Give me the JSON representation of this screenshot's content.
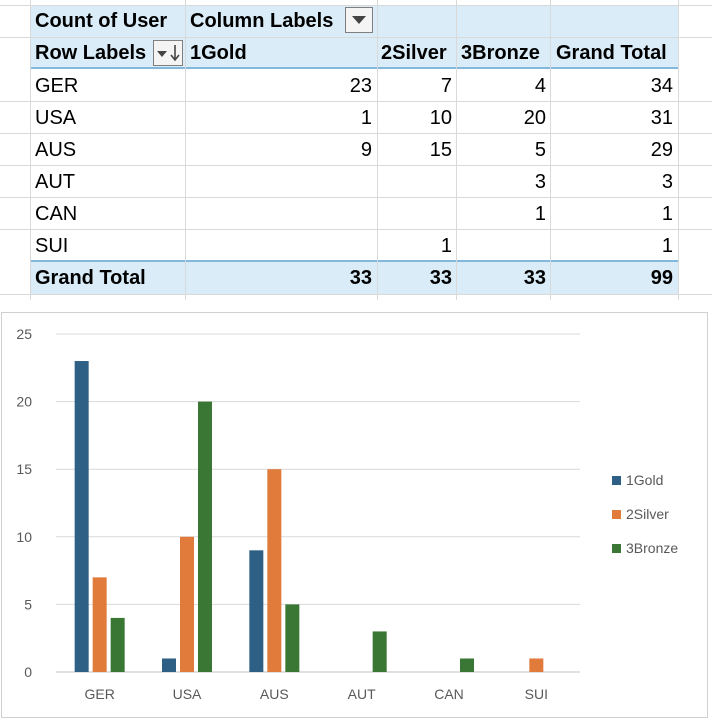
{
  "pivot": {
    "value_label": "Count of User",
    "column_labels": "Column Labels",
    "row_labels": "Row Labels",
    "columns": [
      "1Gold",
      "2Silver",
      "3Bronze",
      "Grand Total"
    ],
    "rows": [
      {
        "label": "GER",
        "values": [
          "23",
          "7",
          "4",
          "34"
        ]
      },
      {
        "label": "USA",
        "values": [
          "1",
          "10",
          "20",
          "31"
        ]
      },
      {
        "label": "AUS",
        "values": [
          "9",
          "15",
          "5",
          "29"
        ]
      },
      {
        "label": "AUT",
        "values": [
          "",
          "",
          "3",
          "3"
        ]
      },
      {
        "label": "CAN",
        "values": [
          "",
          "",
          "1",
          "1"
        ]
      },
      {
        "label": "SUI",
        "values": [
          "",
          "1",
          "",
          "1"
        ]
      }
    ],
    "total": {
      "label": "Grand Total",
      "values": [
        "33",
        "33",
        "33",
        "99"
      ]
    },
    "header_color": "#d9ecf7"
  },
  "chart_data": {
    "type": "bar",
    "categories": [
      "GER",
      "USA",
      "AUS",
      "AUT",
      "CAN",
      "SUI"
    ],
    "series": [
      {
        "name": "1Gold",
        "values": [
          23,
          1,
          9,
          0,
          0,
          0
        ],
        "color": "#2e5f84"
      },
      {
        "name": "2Silver",
        "values": [
          7,
          10,
          15,
          0,
          0,
          1
        ],
        "color": "#e07b3c"
      },
      {
        "name": "3Bronze",
        "values": [
          4,
          20,
          5,
          3,
          1,
          0
        ],
        "color": "#3a7634"
      }
    ],
    "yticks": [
      0,
      5,
      10,
      15,
      20,
      25
    ],
    "ylim": [
      0,
      25
    ],
    "grid": true,
    "legend": "right"
  }
}
